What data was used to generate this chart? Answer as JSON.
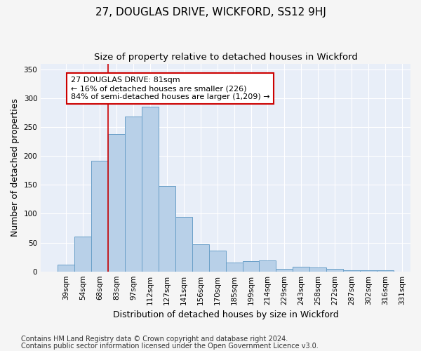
{
  "title": "27, DOUGLAS DRIVE, WICKFORD, SS12 9HJ",
  "subtitle": "Size of property relative to detached houses in Wickford",
  "xlabel": "Distribution of detached houses by size in Wickford",
  "ylabel": "Number of detached properties",
  "categories": [
    "39sqm",
    "54sqm",
    "68sqm",
    "83sqm",
    "97sqm",
    "112sqm",
    "127sqm",
    "141sqm",
    "156sqm",
    "170sqm",
    "185sqm",
    "199sqm",
    "214sqm",
    "229sqm",
    "243sqm",
    "258sqm",
    "272sqm",
    "287sqm",
    "302sqm",
    "316sqm",
    "331sqm"
  ],
  "values": [
    12,
    61,
    192,
    238,
    268,
    285,
    148,
    95,
    47,
    36,
    16,
    18,
    19,
    5,
    8,
    7,
    5,
    2,
    2,
    2
  ],
  "bar_color": "#b8d0e8",
  "bar_edge_color": "#6aa0c8",
  "background_color": "#e8eef8",
  "grid_color": "#ffffff",
  "marker_color": "#cc0000",
  "annotation_line1": "27 DOUGLAS DRIVE: 81sqm",
  "annotation_line2": "← 16% of detached houses are smaller (226)",
  "annotation_line3": "84% of semi-detached houses are larger (1,209) →",
  "annotation_box_color": "#cc0000",
  "ylim": [
    0,
    360
  ],
  "yticks": [
    0,
    50,
    100,
    150,
    200,
    250,
    300,
    350
  ],
  "footnote1": "Contains HM Land Registry data © Crown copyright and database right 2024.",
  "footnote2": "Contains public sector information licensed under the Open Government Licence v3.0.",
  "title_fontsize": 11,
  "subtitle_fontsize": 9.5,
  "axis_label_fontsize": 9,
  "tick_fontsize": 7.5,
  "footnote_fontsize": 7,
  "annotation_fontsize": 8
}
